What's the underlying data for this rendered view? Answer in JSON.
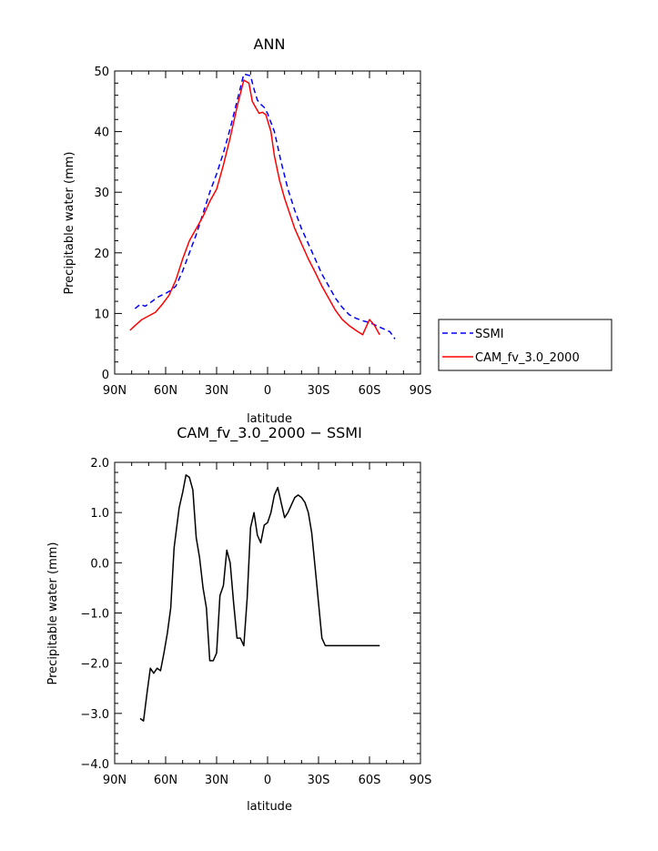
{
  "chart_data": [
    {
      "type": "line",
      "title": "ANN",
      "xlabel": "latitude",
      "ylabel": "Precipitable water (mm)",
      "xlim": [
        90,
        -90
      ],
      "ylim": [
        0,
        50
      ],
      "xticks": [
        90,
        60,
        30,
        0,
        -30,
        -60,
        -90
      ],
      "xticklabels": [
        "90N",
        "60N",
        "30N",
        "0",
        "30S",
        "60S",
        "90S"
      ],
      "yticks": [
        0,
        10,
        20,
        30,
        40,
        50
      ],
      "yticklabels": [
        "0",
        "10",
        "20",
        "30",
        "40",
        "50"
      ],
      "legend_position": "outside-right",
      "series": [
        {
          "name": "SSMI",
          "color": "#0000ff",
          "dash": "dashed",
          "x": [
            78,
            75,
            72,
            68,
            64,
            60,
            57,
            54,
            50,
            46,
            42,
            38,
            34,
            30,
            26,
            22,
            18,
            14,
            10,
            8,
            6,
            4,
            2,
            0,
            -4,
            -8,
            -12,
            -16,
            -20,
            -24,
            -28,
            -32,
            -36,
            -40,
            -44,
            -48,
            -52,
            -56,
            -60,
            -64,
            -68,
            -72,
            -75
          ],
          "y": [
            10.8,
            11.5,
            11.2,
            12.0,
            12.8,
            13.3,
            13.8,
            14.5,
            17.0,
            20.0,
            23.0,
            26.5,
            30.0,
            33.0,
            36.5,
            40.5,
            45.0,
            49.5,
            49.2,
            47.0,
            45.2,
            44.5,
            44.0,
            43.0,
            40.0,
            35.0,
            30.5,
            27.0,
            24.0,
            21.5,
            19.0,
            16.5,
            14.5,
            12.5,
            11.0,
            9.8,
            9.2,
            8.8,
            8.5,
            8.0,
            7.5,
            7.0,
            5.8
          ]
        },
        {
          "name": "CAM_fv_3.0_2000",
          "color": "#ff0000",
          "dash": "solid",
          "x": [
            81,
            78,
            74,
            70,
            66,
            62,
            58,
            54,
            50,
            46,
            42,
            38,
            34,
            30,
            26,
            22,
            18,
            14,
            11,
            9,
            7,
            5,
            3,
            1,
            -2,
            -4,
            -7,
            -10,
            -13,
            -16,
            -20,
            -24,
            -28,
            -32,
            -36,
            -40,
            -44,
            -48,
            -52,
            -56,
            -60,
            -63,
            -66
          ],
          "y": [
            7.2,
            8.0,
            9.0,
            9.6,
            10.2,
            11.5,
            13.0,
            15.5,
            19.0,
            22.0,
            24.0,
            26.0,
            28.5,
            30.5,
            34.5,
            39.0,
            44.0,
            48.5,
            48.0,
            45.0,
            44.0,
            43.0,
            43.2,
            42.8,
            40.0,
            36.0,
            32.0,
            29.0,
            26.5,
            24.0,
            21.5,
            19.0,
            16.8,
            14.5,
            12.5,
            10.5,
            9.0,
            8.0,
            7.2,
            6.5,
            9.0,
            8.0,
            6.5
          ]
        }
      ]
    },
    {
      "type": "line",
      "title": "CAM_fv_3.0_2000 − SSMI",
      "xlabel": "latitude",
      "ylabel": "Precipitable water (mm)",
      "xlim": [
        90,
        -90
      ],
      "ylim": [
        -4.0,
        2.0
      ],
      "xticks": [
        90,
        60,
        30,
        0,
        -30,
        -60,
        -90
      ],
      "xticklabels": [
        "90N",
        "60N",
        "30N",
        "0",
        "30S",
        "60S",
        "90S"
      ],
      "yticks": [
        -4,
        -3,
        -2,
        -1,
        0,
        1,
        2
      ],
      "yticklabels": [
        "−4.0",
        "−3.0",
        "−2.0",
        "−1.0",
        "0.0",
        "1.0",
        "2.0"
      ],
      "series": [
        {
          "color": "#000000",
          "dash": "solid",
          "x": [
            75,
            73,
            71,
            69,
            67,
            65,
            63,
            61,
            59,
            57,
            55,
            52,
            50,
            48,
            46,
            44,
            42,
            40,
            38,
            36,
            34,
            32,
            30,
            28,
            26,
            24,
            22,
            20,
            18,
            16,
            14,
            12,
            10,
            8,
            6,
            4,
            2,
            0,
            -2,
            -4,
            -6,
            -8,
            -10,
            -12,
            -14,
            -16,
            -18,
            -20,
            -22,
            -24,
            -26,
            -28,
            -30,
            -32,
            -34,
            -36,
            -38,
            -40,
            -42,
            -44,
            -46,
            -48,
            -50,
            -52,
            -54,
            -56,
            -58,
            -60,
            -62,
            -64,
            -66
          ],
          "y": [
            -3.1,
            -3.15,
            -2.6,
            -2.1,
            -2.2,
            -2.1,
            -2.15,
            -1.8,
            -1.4,
            -0.9,
            0.3,
            1.1,
            1.4,
            1.75,
            1.7,
            1.45,
            0.5,
            0.1,
            -0.5,
            -0.9,
            -1.95,
            -1.95,
            -1.8,
            -0.65,
            -0.45,
            0.25,
            0.0,
            -0.8,
            -1.5,
            -1.5,
            -1.65,
            -0.7,
            0.7,
            1.0,
            0.55,
            0.4,
            0.75,
            0.8,
            1.0,
            1.35,
            1.5,
            1.2,
            0.9,
            1.0,
            1.15,
            1.3,
            1.35,
            1.3,
            1.2,
            1.0,
            0.6,
            -0.1,
            -0.8,
            -1.5,
            -1.65,
            -1.65,
            -1.65,
            -1.65,
            -1.65,
            -1.65,
            -1.65,
            -1.65,
            -1.65,
            -1.65,
            -1.65,
            -1.65,
            -1.65,
            -1.65,
            -1.65,
            -1.65,
            -1.65
          ]
        }
      ]
    }
  ]
}
